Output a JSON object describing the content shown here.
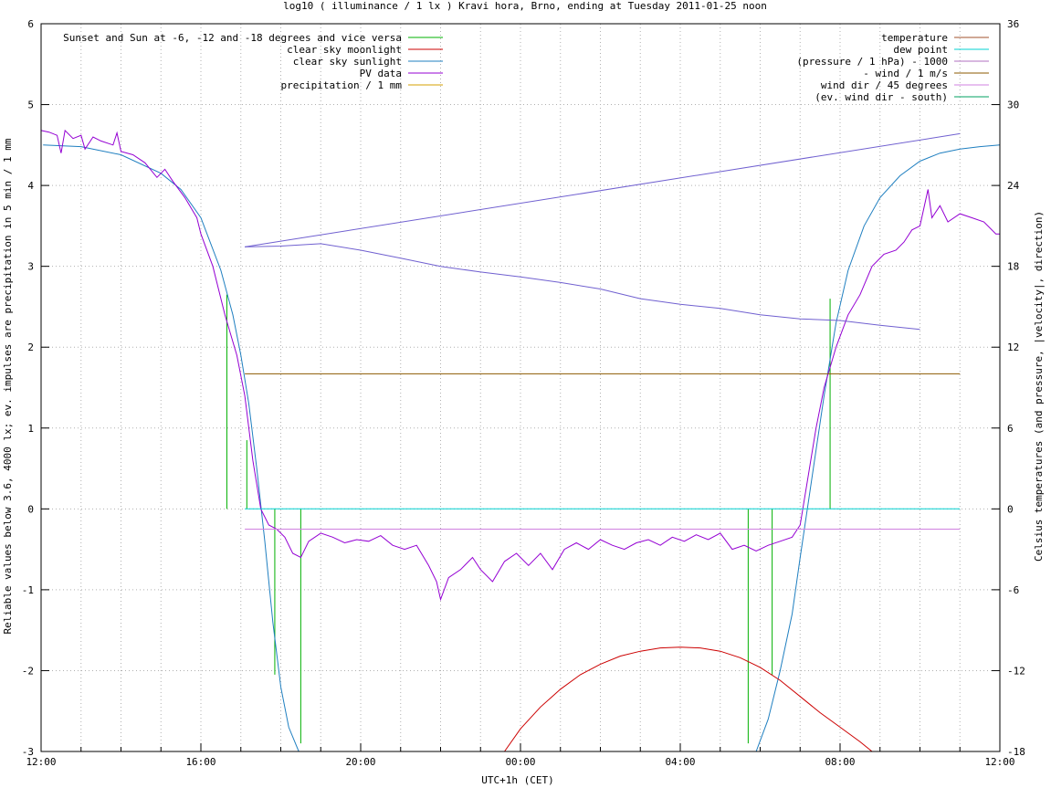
{
  "chart_data": {
    "type": "line",
    "title": "log10 ( illuminance / 1 lx ) Kravi hora, Brno, ending at Tuesday 2011-01-25 noon",
    "xlabel": "UTC+1h (CET)",
    "ylabel": "Reliable values below 3.6, 4000 lx; ev. impulses are precipitation in 5 min / 1 mm",
    "y2label": "Celsius temperatures (and pressure, |velocity|, direction)",
    "xlim": [
      12,
      36
    ],
    "ylim": [
      -3,
      6
    ],
    "y2lim": [
      -18,
      36
    ],
    "x_ticks": [
      {
        "x": 12,
        "label": "12:00"
      },
      {
        "x": 16,
        "label": "16:00"
      },
      {
        "x": 20,
        "label": "20:00"
      },
      {
        "x": 24,
        "label": "00:00"
      },
      {
        "x": 28,
        "label": "04:00"
      },
      {
        "x": 32,
        "label": "08:00"
      },
      {
        "x": 36,
        "label": "12:00"
      }
    ],
    "y_ticks": [
      -3,
      -2,
      -1,
      0,
      1,
      2,
      3,
      4,
      5,
      6
    ],
    "y2_ticks": [
      -18,
      -12,
      -6,
      0,
      6,
      12,
      18,
      24,
      30,
      36
    ],
    "grid": true,
    "legend_left": [
      {
        "name": "Sunset and Sun at -6, -12 and -18 degrees and vice versa",
        "color": "#00b000"
      },
      {
        "name": "clear sky moonlight",
        "color": "#cc0000"
      },
      {
        "name": "clear sky sunlight",
        "color": "#1f7fc0"
      },
      {
        "name": "PV data",
        "color": "#9400d3"
      },
      {
        "name": "precipitation / 1 mm",
        "color": "#d4a000"
      }
    ],
    "legend_right": [
      {
        "name": "temperature",
        "color": "#a0522d"
      },
      {
        "name": "dew point",
        "color": "#00d0d0"
      },
      {
        "name": "(pressure / 1 hPa) - 1000",
        "color": "#b070c0"
      },
      {
        "name": "- wind / 1 m/s",
        "color": "#8b5a00"
      },
      {
        "name": "wind dir / 45 degrees",
        "color": "#d080e0"
      },
      {
        "name": "(ev. wind dir - south)",
        "color": "#00a060"
      }
    ],
    "sun_event_lines": [
      {
        "x": 16.65,
        "y_top": 2.65
      },
      {
        "x": 17.15,
        "y_top": 0.85
      },
      {
        "x": 17.85,
        "y_top": -2.05
      },
      {
        "x": 18.5,
        "y_top": -2.9
      },
      {
        "x": 29.7,
        "y_top": -2.9
      },
      {
        "x": 30.3,
        "y_top": -2.05
      },
      {
        "x": 31.3,
        "y_top": 0.0
      },
      {
        "x": 31.75,
        "y_top": 2.6
      }
    ],
    "series": [
      {
        "name": "clear sky sunlight",
        "color": "#1f7fc0",
        "points": [
          [
            12.05,
            4.5
          ],
          [
            13.0,
            4.48
          ],
          [
            14.0,
            4.38
          ],
          [
            15.0,
            4.15
          ],
          [
            15.5,
            3.95
          ],
          [
            16.0,
            3.6
          ],
          [
            16.5,
            2.95
          ],
          [
            16.8,
            2.4
          ],
          [
            17.0,
            1.9
          ],
          [
            17.2,
            1.3
          ],
          [
            17.4,
            0.5
          ],
          [
            17.6,
            -0.4
          ],
          [
            17.8,
            -1.4
          ],
          [
            18.0,
            -2.2
          ],
          [
            18.2,
            -2.7
          ],
          [
            18.45,
            -3.0
          ],
          [
            29.9,
            -3.0
          ],
          [
            30.2,
            -2.6
          ],
          [
            30.5,
            -2.0
          ],
          [
            30.8,
            -1.3
          ],
          [
            31.0,
            -0.6
          ],
          [
            31.3,
            0.4
          ],
          [
            31.6,
            1.4
          ],
          [
            31.9,
            2.3
          ],
          [
            32.2,
            2.95
          ],
          [
            32.6,
            3.5
          ],
          [
            33.0,
            3.85
          ],
          [
            33.5,
            4.12
          ],
          [
            34.0,
            4.3
          ],
          [
            34.5,
            4.4
          ],
          [
            35.0,
            4.45
          ],
          [
            35.5,
            4.48
          ],
          [
            36.0,
            4.5
          ]
        ]
      },
      {
        "name": "clear sky moonlight",
        "color": "#cc0000",
        "points": [
          [
            23.6,
            -3.0
          ],
          [
            24.0,
            -2.72
          ],
          [
            24.5,
            -2.45
          ],
          [
            25.0,
            -2.23
          ],
          [
            25.5,
            -2.05
          ],
          [
            26.0,
            -1.92
          ],
          [
            26.5,
            -1.82
          ],
          [
            27.0,
            -1.76
          ],
          [
            27.5,
            -1.72
          ],
          [
            28.0,
            -1.71
          ],
          [
            28.5,
            -1.72
          ],
          [
            29.0,
            -1.76
          ],
          [
            29.5,
            -1.84
          ],
          [
            30.0,
            -1.96
          ],
          [
            30.5,
            -2.12
          ],
          [
            31.0,
            -2.32
          ],
          [
            31.5,
            -2.52
          ],
          [
            32.0,
            -2.7
          ],
          [
            32.5,
            -2.88
          ],
          [
            32.8,
            -3.0
          ]
        ]
      },
      {
        "name": "PV data",
        "color": "#9400d3",
        "points": [
          [
            12.0,
            4.68
          ],
          [
            12.2,
            4.66
          ],
          [
            12.4,
            4.62
          ],
          [
            12.5,
            4.4
          ],
          [
            12.6,
            4.68
          ],
          [
            12.8,
            4.58
          ],
          [
            13.0,
            4.62
          ],
          [
            13.1,
            4.45
          ],
          [
            13.3,
            4.6
          ],
          [
            13.5,
            4.55
          ],
          [
            13.8,
            4.5
          ],
          [
            13.9,
            4.65
          ],
          [
            14.0,
            4.42
          ],
          [
            14.3,
            4.38
          ],
          [
            14.6,
            4.28
          ],
          [
            14.9,
            4.1
          ],
          [
            15.1,
            4.2
          ],
          [
            15.3,
            4.05
          ],
          [
            15.6,
            3.85
          ],
          [
            15.9,
            3.6
          ],
          [
            16.0,
            3.4
          ],
          [
            16.3,
            3.0
          ],
          [
            16.6,
            2.4
          ],
          [
            16.9,
            1.9
          ],
          [
            17.1,
            1.4
          ],
          [
            17.3,
            0.6
          ],
          [
            17.5,
            0.0
          ],
          [
            17.7,
            -0.2
          ],
          [
            17.9,
            -0.25
          ],
          [
            18.1,
            -0.35
          ],
          [
            18.3,
            -0.55
          ],
          [
            18.5,
            -0.6
          ],
          [
            18.7,
            -0.4
          ],
          [
            19.0,
            -0.3
          ],
          [
            19.3,
            -0.35
          ],
          [
            19.6,
            -0.42
          ],
          [
            19.9,
            -0.38
          ],
          [
            20.2,
            -0.4
          ],
          [
            20.5,
            -0.33
          ],
          [
            20.8,
            -0.45
          ],
          [
            21.1,
            -0.5
          ],
          [
            21.4,
            -0.45
          ],
          [
            21.7,
            -0.7
          ],
          [
            21.9,
            -0.9
          ],
          [
            22.0,
            -1.12
          ],
          [
            22.2,
            -0.85
          ],
          [
            22.5,
            -0.75
          ],
          [
            22.8,
            -0.6
          ],
          [
            23.0,
            -0.75
          ],
          [
            23.3,
            -0.9
          ],
          [
            23.6,
            -0.65
          ],
          [
            23.9,
            -0.55
          ],
          [
            24.2,
            -0.7
          ],
          [
            24.5,
            -0.55
          ],
          [
            24.8,
            -0.75
          ],
          [
            25.1,
            -0.5
          ],
          [
            25.4,
            -0.42
          ],
          [
            25.7,
            -0.5
          ],
          [
            26.0,
            -0.38
          ],
          [
            26.3,
            -0.45
          ],
          [
            26.6,
            -0.5
          ],
          [
            26.9,
            -0.42
          ],
          [
            27.2,
            -0.38
          ],
          [
            27.5,
            -0.45
          ],
          [
            27.8,
            -0.35
          ],
          [
            28.1,
            -0.4
          ],
          [
            28.4,
            -0.32
          ],
          [
            28.7,
            -0.38
          ],
          [
            29.0,
            -0.3
          ],
          [
            29.3,
            -0.5
          ],
          [
            29.6,
            -0.45
          ],
          [
            29.9,
            -0.52
          ],
          [
            30.2,
            -0.45
          ],
          [
            30.5,
            -0.4
          ],
          [
            30.8,
            -0.35
          ],
          [
            31.0,
            -0.2
          ],
          [
            31.2,
            0.4
          ],
          [
            31.4,
            1.0
          ],
          [
            31.6,
            1.5
          ],
          [
            31.9,
            2.0
          ],
          [
            32.2,
            2.4
          ],
          [
            32.5,
            2.65
          ],
          [
            32.8,
            3.0
          ],
          [
            33.1,
            3.15
          ],
          [
            33.4,
            3.2
          ],
          [
            33.6,
            3.3
          ],
          [
            33.8,
            3.45
          ],
          [
            34.0,
            3.5
          ],
          [
            34.2,
            3.95
          ],
          [
            34.3,
            3.6
          ],
          [
            34.5,
            3.75
          ],
          [
            34.7,
            3.55
          ],
          [
            35.0,
            3.65
          ],
          [
            35.3,
            3.6
          ],
          [
            35.6,
            3.55
          ],
          [
            35.9,
            3.4
          ],
          [
            36.0,
            3.4
          ]
        ]
      },
      {
        "name": "(pressure / 1 hPa) - 1000",
        "color": "#7060d0",
        "points": [
          [
            17.1,
            3.24
          ],
          [
            35.0,
            4.64
          ]
        ]
      },
      {
        "name": "temperature",
        "color": "#7060d0",
        "points": [
          [
            17.1,
            3.24
          ],
          [
            18.0,
            3.25
          ],
          [
            19.0,
            3.28
          ],
          [
            20.0,
            3.2
          ],
          [
            21.0,
            3.1
          ],
          [
            22.0,
            3.0
          ],
          [
            23.0,
            2.93
          ],
          [
            24.0,
            2.87
          ],
          [
            25.0,
            2.8
          ],
          [
            26.0,
            2.72
          ],
          [
            27.0,
            2.6
          ],
          [
            28.0,
            2.53
          ],
          [
            29.0,
            2.48
          ],
          [
            30.0,
            2.4
          ],
          [
            31.0,
            2.35
          ],
          [
            32.0,
            2.33
          ],
          [
            33.0,
            2.27
          ],
          [
            34.0,
            2.22
          ]
        ]
      },
      {
        "name": "- wind / 1 m/s",
        "color": "#8b5a00",
        "points": [
          [
            17.1,
            1.67
          ],
          [
            35.0,
            1.67
          ]
        ]
      },
      {
        "name": "dew point",
        "color": "#00d0d0",
        "points": [
          [
            17.1,
            0.0
          ],
          [
            35.0,
            0.0
          ]
        ]
      },
      {
        "name": "wind dir / 45 degrees",
        "color": "#d080e0",
        "points": [
          [
            17.1,
            -0.25
          ],
          [
            35.0,
            -0.25
          ]
        ]
      }
    ]
  }
}
